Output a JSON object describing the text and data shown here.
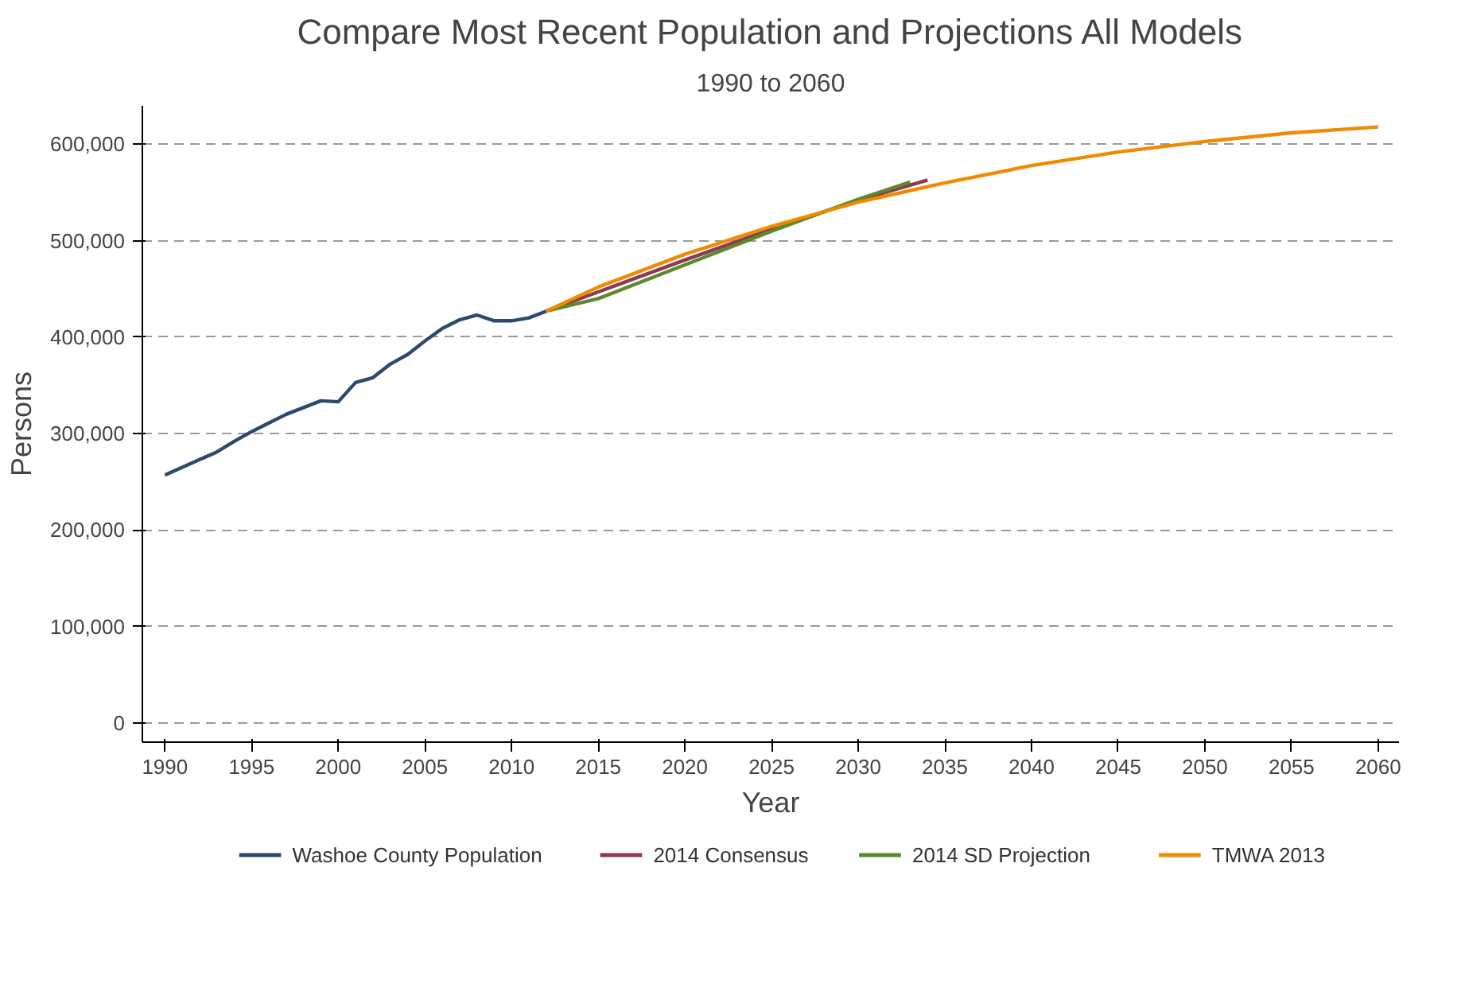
{
  "chart_data": {
    "type": "line",
    "title": "Compare Most Recent Population and Projections All Models",
    "subtitle": "1990 to 2060",
    "xlabel": "Year",
    "ylabel": "Persons",
    "xlim": [
      1988.7,
      2061.2
    ],
    "ylim": [
      -20000,
      640000
    ],
    "xticks": [
      1990,
      1995,
      2000,
      2005,
      2010,
      2015,
      2020,
      2025,
      2030,
      2035,
      2040,
      2045,
      2050,
      2055,
      2060
    ],
    "yticks": [
      {
        "value": 0,
        "label": "0"
      },
      {
        "value": 100000,
        "label": "100,000"
      },
      {
        "value": 200000,
        "label": "200,000"
      },
      {
        "value": 300000,
        "label": "300,000"
      },
      {
        "value": 400000,
        "label": "400,000"
      },
      {
        "value": 500000,
        "label": "500,000"
      },
      {
        "value": 600000,
        "label": "600,000"
      }
    ],
    "grid": "y",
    "legend": "bottom",
    "line_style": "solid",
    "series": [
      {
        "name": "Washoe County Population",
        "color": "#2c4a6e",
        "x": [
          1990,
          1991,
          1992,
          1993,
          1994,
          1995,
          1996,
          1997,
          1998,
          1999,
          2000,
          2001,
          2002,
          2003,
          2004,
          2005,
          2006,
          2007,
          2008,
          2009,
          2010,
          2011,
          2012
        ],
        "values": [
          257000,
          265000,
          273000,
          281000,
          292000,
          302000,
          311000,
          320000,
          327000,
          334000,
          333000,
          353000,
          358000,
          372000,
          382000,
          396000,
          409000,
          418000,
          423000,
          417000,
          417000,
          420000,
          427000
        ]
      },
      {
        "name": "2014 Consensus",
        "color": "#8b3a52",
        "x": [
          2012,
          2015,
          2020,
          2025,
          2030,
          2034
        ],
        "values": [
          427000,
          447000,
          480000,
          512000,
          542000,
          563000
        ]
      },
      {
        "name": "2014 SD Projection",
        "color": "#5a8a2a",
        "x": [
          2012,
          2015,
          2020,
          2025,
          2030,
          2033
        ],
        "values": [
          427000,
          440000,
          475000,
          510000,
          543000,
          561000
        ]
      },
      {
        "name": "TMWA 2013",
        "color": "#f08a00",
        "x": [
          2012,
          2015,
          2020,
          2025,
          2030,
          2035,
          2040,
          2045,
          2050,
          2055,
          2060
        ],
        "values": [
          427000,
          452000,
          486000,
          515000,
          540000,
          560000,
          578000,
          592000,
          603000,
          612000,
          618000
        ]
      }
    ]
  }
}
